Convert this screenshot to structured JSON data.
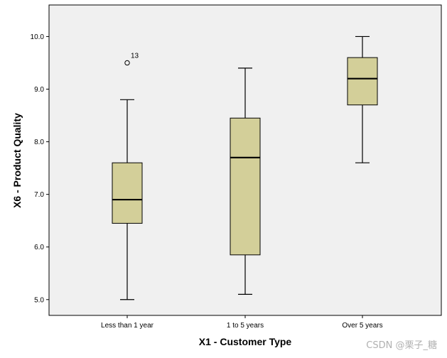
{
  "chart_data": {
    "type": "boxplot",
    "xlabel": "X1 - Customer Type",
    "ylabel": "X6 - Product Quality",
    "ylim": [
      4.7,
      10.6
    ],
    "yticks": [
      5.0,
      6.0,
      7.0,
      8.0,
      9.0,
      10.0
    ],
    "ytick_labels": [
      "5.0",
      "6.0",
      "7.0",
      "8.0",
      "9.0",
      "10.0"
    ],
    "grid": false,
    "colors": {
      "plot_bg": "#f0f0f0",
      "box_fill": "#d3cf99",
      "stroke": "#000000"
    },
    "categories": [
      "Less than 1 year",
      "1 to 5 years",
      "Over 5 years"
    ],
    "boxes": [
      {
        "category": "Less than 1 year",
        "min": 5.0,
        "q1": 6.45,
        "median": 6.9,
        "q3": 7.6,
        "max": 8.8,
        "outliers": [
          {
            "value": 9.5,
            "label": "13"
          }
        ]
      },
      {
        "category": "1 to 5 years",
        "min": 5.1,
        "q1": 5.85,
        "median": 7.7,
        "q3": 8.45,
        "max": 9.4,
        "outliers": []
      },
      {
        "category": "Over 5 years",
        "min": 7.6,
        "q1": 8.7,
        "median": 9.2,
        "q3": 9.6,
        "max": 10.0,
        "outliers": []
      }
    ]
  },
  "watermark": "CSDN @栗子_糖"
}
